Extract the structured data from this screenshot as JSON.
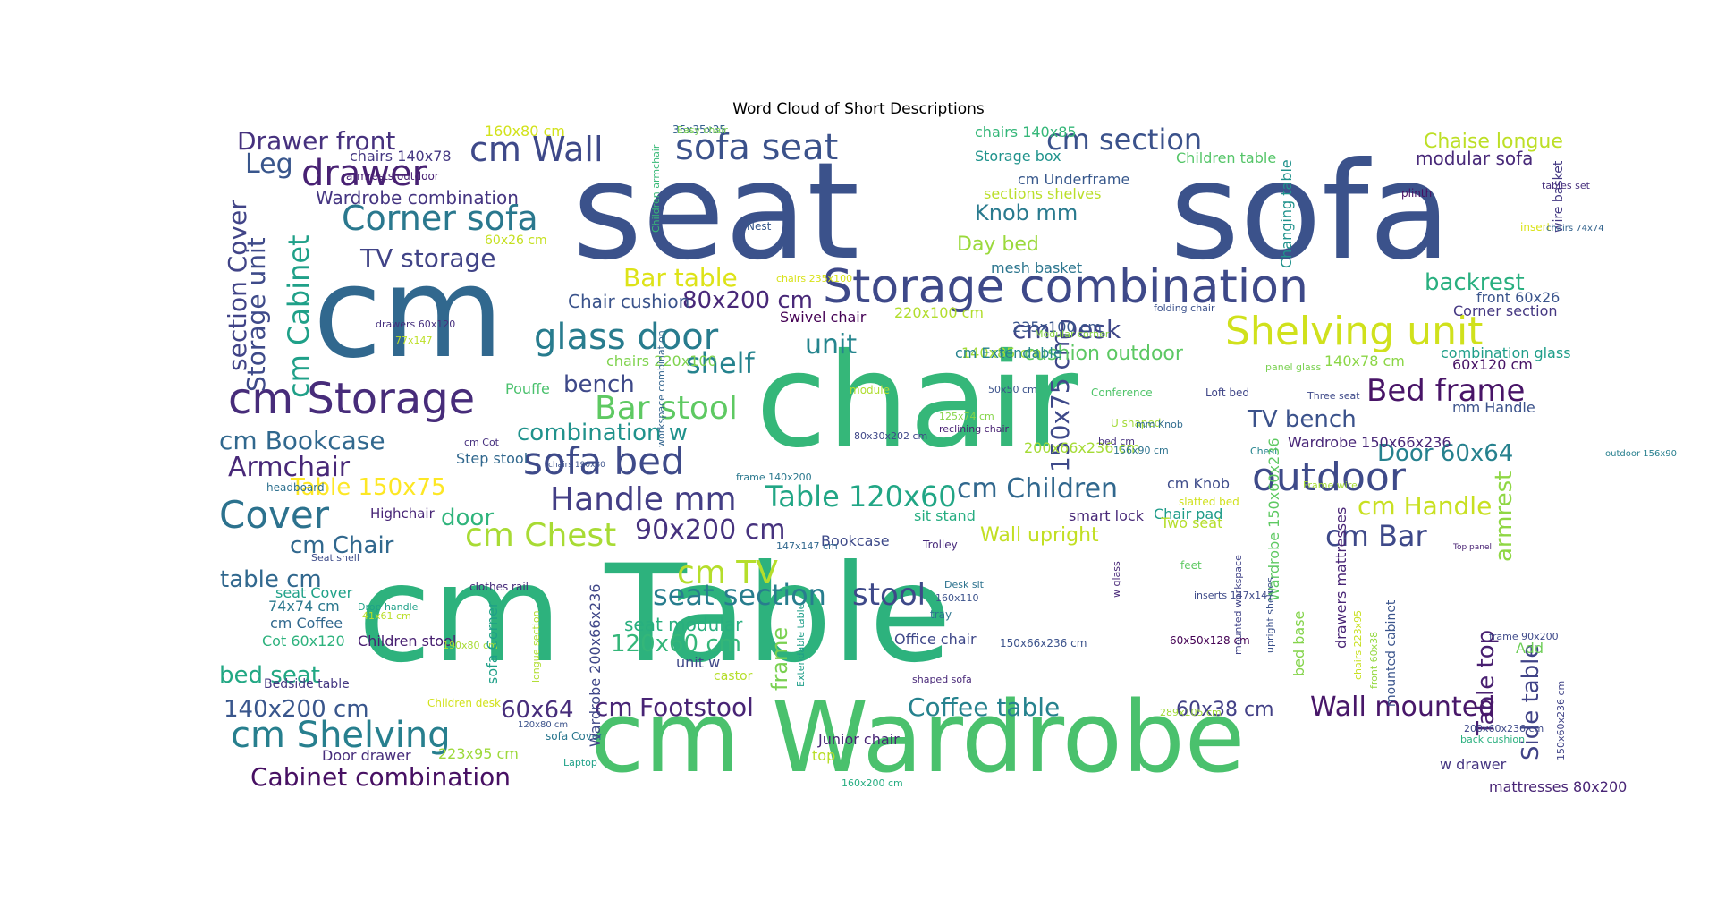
{
  "chart_data": {
    "type": "word_cloud",
    "title": "Word Cloud of Short Descriptions",
    "background": "#ffffff",
    "palette": "viridis",
    "words": [
      {
        "text": "seat",
        "weight": 100,
        "color": "#3b528b"
      },
      {
        "text": "sofa",
        "weight": 100,
        "color": "#3b528b"
      },
      {
        "text": "chair",
        "weight": 95,
        "color": "#35b779"
      },
      {
        "text": "cm",
        "weight": 94,
        "color": "#31688e"
      },
      {
        "text": "cm Table",
        "weight": 92,
        "color": "#2db27d"
      },
      {
        "text": "cm Wardrobe",
        "weight": 72,
        "color": "#4ac16d"
      },
      {
        "text": "Storage combination",
        "weight": 36,
        "color": "#3e4989"
      },
      {
        "text": "Shelving unit",
        "weight": 30,
        "color": "#d0e11c"
      },
      {
        "text": "cm Storage",
        "weight": 34,
        "color": "#472c7a"
      },
      {
        "text": "glass door",
        "weight": 30,
        "color": "#287c8e"
      },
      {
        "text": "outdoor",
        "weight": 30,
        "color": "#3e4a89"
      },
      {
        "text": "Corner sofa",
        "weight": 28,
        "color": "#2a788e"
      },
      {
        "text": "drawer",
        "weight": 30,
        "color": "#482173"
      },
      {
        "text": "sofa seat",
        "weight": 28,
        "color": "#3b528b"
      },
      {
        "text": "cm Wall",
        "weight": 28,
        "color": "#3e4989"
      },
      {
        "text": "cm section",
        "weight": 24,
        "color": "#3b528b"
      },
      {
        "text": "sofa bed",
        "weight": 28,
        "color": "#3e4a89"
      },
      {
        "text": "Bar stool",
        "weight": 26,
        "color": "#5ec962"
      },
      {
        "text": "Handle mm",
        "weight": 26,
        "color": "#433e85"
      },
      {
        "text": "Cover",
        "weight": 28,
        "color": "#2c728e"
      },
      {
        "text": "cm Shelving",
        "weight": 28,
        "color": "#277f8e"
      },
      {
        "text": "Bed frame",
        "weight": 24,
        "color": "#481467"
      },
      {
        "text": "Table 120x60",
        "weight": 24,
        "color": "#21a685"
      },
      {
        "text": "cm Children",
        "weight": 22,
        "color": "#31688e"
      },
      {
        "text": "cm Chest",
        "weight": 26,
        "color": "#a8db34"
      },
      {
        "text": "90x200 cm",
        "weight": 22,
        "color": "#46327e"
      },
      {
        "text": "cm TV",
        "weight": 26,
        "color": "#b5de2b"
      },
      {
        "text": "seat section",
        "weight": 22,
        "color": "#287d8e"
      },
      {
        "text": "stool",
        "weight": 22,
        "color": "#3e4989"
      },
      {
        "text": "150x75 cm",
        "weight": 22,
        "color": "#3e4989"
      },
      {
        "text": "cm Bar",
        "weight": 24,
        "color": "#3e4989"
      },
      {
        "text": "armrest",
        "weight": 20,
        "color": "#8fd744"
      },
      {
        "text": "Side table",
        "weight": 20,
        "color": "#404387"
      },
      {
        "text": "Table top",
        "weight": 20,
        "color": "#481f70"
      },
      {
        "text": "cm Handle",
        "weight": 20,
        "color": "#c8e020"
      },
      {
        "text": "Wall mounted",
        "weight": 20,
        "color": "#481769"
      },
      {
        "text": "Coffee table",
        "weight": 20,
        "color": "#26828e"
      },
      {
        "text": "Footstool",
        "weight": 20,
        "color": "#482475"
      },
      {
        "text": "Cabinet combination",
        "weight": 20,
        "color": "#471063"
      },
      {
        "text": "cm Cabinet",
        "weight": 22,
        "color": "#1fa088"
      },
      {
        "text": "Storage unit",
        "weight": 18,
        "color": "#3e4a89"
      },
      {
        "text": "section Cover",
        "weight": 18,
        "color": "#414487"
      },
      {
        "text": "Drawer front",
        "weight": 18,
        "color": "#46317e"
      },
      {
        "text": "Leg",
        "weight": 20,
        "color": "#39568c"
      },
      {
        "text": "TV storage",
        "weight": 18,
        "color": "#414487"
      },
      {
        "text": "Wardrobe combination",
        "weight": 14,
        "color": "#453581"
      },
      {
        "text": "Bar table",
        "weight": 18,
        "color": "#dde318"
      },
      {
        "text": "80x200 cm",
        "weight": 18,
        "color": "#482878"
      },
      {
        "text": "Knob mm",
        "weight": 18,
        "color": "#297a8e"
      },
      {
        "text": "Day bed",
        "weight": 16,
        "color": "#9bd93c"
      },
      {
        "text": "cm Desk",
        "weight": 20,
        "color": "#3f4788"
      },
      {
        "text": "unit",
        "weight": 20,
        "color": "#25858e"
      },
      {
        "text": "shelf",
        "weight": 22,
        "color": "#25838e"
      },
      {
        "text": "bench",
        "weight": 18,
        "color": "#3e4989"
      },
      {
        "text": "cushion outdoor",
        "weight": 16,
        "color": "#5cc863"
      },
      {
        "text": "backrest",
        "weight": 18,
        "color": "#29af7f"
      },
      {
        "text": "cm Bookcase",
        "weight": 18,
        "color": "#31688e"
      },
      {
        "text": "Armchair",
        "weight": 20,
        "color": "#482878"
      },
      {
        "text": "combination w",
        "weight": 18,
        "color": "#20928c"
      },
      {
        "text": "Table 150x75",
        "weight": 18,
        "color": "#fde725"
      },
      {
        "text": "door",
        "weight": 18,
        "color": "#2fb47c"
      },
      {
        "text": "cm Chair",
        "weight": 18,
        "color": "#31688e"
      },
      {
        "text": "table cm",
        "weight": 18,
        "color": "#31688e"
      },
      {
        "text": "TV bench",
        "weight": 18,
        "color": "#3b528b"
      },
      {
        "text": "Door 60x64",
        "weight": 18,
        "color": "#26818e"
      },
      {
        "text": "60x64",
        "weight": 18,
        "color": "#472d7b"
      },
      {
        "text": "cm",
        "weight": 18,
        "color": "#482576"
      },
      {
        "text": "120x60 cm",
        "weight": 18,
        "color": "#34b679"
      },
      {
        "text": "140x200 cm",
        "weight": 18,
        "color": "#39568c"
      },
      {
        "text": "bed seat",
        "weight": 18,
        "color": "#22a884"
      },
      {
        "text": "60x38 cm",
        "weight": 14,
        "color": "#424086"
      },
      {
        "text": "frame",
        "weight": 16,
        "color": "#7ad151"
      },
      {
        "text": "seat modular",
        "weight": 14,
        "color": "#29af7f"
      },
      {
        "text": "Chair cushion",
        "weight": 14,
        "color": "#3a538b"
      },
      {
        "text": "Chaise longue",
        "weight": 16,
        "color": "#bddf26"
      },
      {
        "text": "modular sofa",
        "weight": 14,
        "color": "#482979"
      },
      {
        "text": "Wall upright",
        "weight": 16,
        "color": "#c2df23"
      },
      {
        "text": "Chair pad",
        "weight": 12,
        "color": "#1e9c89"
      },
      {
        "text": "cm Knob",
        "weight": 12,
        "color": "#3e4c8a"
      },
      {
        "text": "chairs 140x85",
        "weight": 12,
        "color": "#35b779"
      },
      {
        "text": "Storage box",
        "weight": 12,
        "color": "#20938c"
      },
      {
        "text": "cm Underframe",
        "weight": 12,
        "color": "#38588c"
      },
      {
        "text": "sections shelves",
        "weight": 12,
        "color": "#bade28"
      },
      {
        "text": "Children table",
        "weight": 12,
        "color": "#54c568"
      },
      {
        "text": "mesh basket",
        "weight": 12,
        "color": "#2b758e"
      },
      {
        "text": "chairs 140x78",
        "weight": 12,
        "color": "#453882"
      },
      {
        "text": "armrests outdoor",
        "weight": 10,
        "color": "#482173"
      },
      {
        "text": "160x80 cm",
        "weight": 12,
        "color": "#d2e21b"
      },
      {
        "text": "60x26 cm",
        "weight": 11,
        "color": "#c5e021"
      },
      {
        "text": "Changing table",
        "weight": 12,
        "color": "#20928c"
      },
      {
        "text": "Children armchair",
        "weight": 9,
        "color": "#38b977"
      },
      {
        "text": "wire basket",
        "weight": 10,
        "color": "#443983"
      },
      {
        "text": "Swivel chair",
        "weight": 12,
        "color": "#440154"
      },
      {
        "text": "chairs 235x100",
        "weight": 9,
        "color": "#d8e219"
      },
      {
        "text": "220x100 cm",
        "weight": 12,
        "color": "#b2dd2d"
      },
      {
        "text": "235x100 cm",
        "weight": 12,
        "color": "#39558c"
      },
      {
        "text": "140x85 cm",
        "weight": 12,
        "color": "#a0da39"
      },
      {
        "text": "cm Extendable",
        "weight": 11,
        "color": "#26828e"
      },
      {
        "text": "front 60x26",
        "weight": 12,
        "color": "#3a548c"
      },
      {
        "text": "Corner section",
        "weight": 12,
        "color": "#453882"
      },
      {
        "text": "combination glass",
        "weight": 11,
        "color": "#1f9e89"
      },
      {
        "text": "60x120 cm",
        "weight": 12,
        "color": "#471365"
      },
      {
        "text": "140x78 cm",
        "weight": 12,
        "color": "#8bd646"
      },
      {
        "text": "mm Handle",
        "weight": 12,
        "color": "#3b528b"
      },
      {
        "text": "Wardrobe 150x66x236",
        "weight": 12,
        "color": "#482677"
      },
      {
        "text": "200x66x236 cm",
        "weight": 12,
        "color": "#a5db36"
      },
      {
        "text": "sit stand",
        "weight": 12,
        "color": "#26ad81"
      },
      {
        "text": "smart lock",
        "weight": 12,
        "color": "#482878"
      },
      {
        "text": "chairs 220x100",
        "weight": 12,
        "color": "#7fd34e"
      },
      {
        "text": "Step stool",
        "weight": 9,
        "color": "#31688e"
      },
      {
        "text": "Pouffe",
        "weight": 9,
        "color": "#4ac16d"
      },
      {
        "text": "cm Cot",
        "weight": 11,
        "color": "#46307e"
      },
      {
        "text": "headboard",
        "weight": 12,
        "color": "#2d708e"
      },
      {
        "text": "Highchair",
        "weight": 10,
        "color": "#482677"
      },
      {
        "text": "seat Cover",
        "weight": 12,
        "color": "#1fa188"
      },
      {
        "text": "clothes rail",
        "weight": 12,
        "color": "#472c7a"
      },
      {
        "text": "74x74 cm",
        "weight": 12,
        "color": "#2a788e"
      },
      {
        "text": "cm Coffee",
        "weight": 12,
        "color": "#31688e"
      },
      {
        "text": "Cot 60x120",
        "weight": 12,
        "color": "#2db27d"
      },
      {
        "text": "Children stool",
        "weight": 10,
        "color": "#482071"
      },
      {
        "text": "Bedside table",
        "weight": 10,
        "color": "#453882"
      },
      {
        "text": "Children desk",
        "weight": 12,
        "color": "#d2e21b"
      },
      {
        "text": "sofa Cover",
        "weight": 12,
        "color": "#2a778e"
      },
      {
        "text": "Door drawer",
        "weight": 12,
        "color": "#472d7b"
      },
      {
        "text": "223x95 cm",
        "weight": 11,
        "color": "#9dd93b"
      },
      {
        "text": "unit w",
        "weight": 12,
        "color": "#3f4788"
      },
      {
        "text": "castor",
        "weight": 12,
        "color": "#b5de2b"
      },
      {
        "text": "Junior chair",
        "weight": 10,
        "color": "#482576"
      },
      {
        "text": "top",
        "weight": 12,
        "color": "#b8de29"
      },
      {
        "text": "tray",
        "weight": 11,
        "color": "#2b748e"
      },
      {
        "text": "Office chair",
        "weight": 12,
        "color": "#3f4889"
      },
      {
        "text": "150x66x236 cm",
        "weight": 12,
        "color": "#3b528b"
      },
      {
        "text": "w drawer",
        "weight": 12,
        "color": "#453581"
      },
      {
        "text": "mattresses 80x200",
        "weight": 10,
        "color": "#482475"
      },
      {
        "text": "Add",
        "weight": 12,
        "color": "#6ece58"
      },
      {
        "text": "Trolley",
        "weight": 10,
        "color": "#472a7a"
      },
      {
        "text": "Bookcase",
        "weight": 10,
        "color": "#3e4a89"
      },
      {
        "text": "feet",
        "weight": 10,
        "color": "#5ec962"
      },
      {
        "text": "U shaped",
        "weight": 10,
        "color": "#a2da37"
      },
      {
        "text": "Conference",
        "weight": 9,
        "color": "#50c46a"
      },
      {
        "text": "Loft bed",
        "weight": 10,
        "color": "#404688"
      },
      {
        "text": "folding chair",
        "weight": 10,
        "color": "#3b518b"
      },
      {
        "text": "Nest",
        "weight": 10,
        "color": "#38598c"
      },
      {
        "text": "plinth",
        "weight": 10,
        "color": "#471063"
      },
      {
        "text": "insert",
        "weight": 12,
        "color": "#dae319"
      },
      {
        "text": "module",
        "weight": 10,
        "color": "#b0dd2f"
      },
      {
        "text": "Two seat",
        "weight": 9,
        "color": "#b5de2b"
      },
      {
        "text": "slatted bed",
        "weight": 9,
        "color": "#d0e11c"
      },
      {
        "text": "Frame wire",
        "weight": 8,
        "color": "#a5db36"
      },
      {
        "text": "Three seat",
        "weight": 10,
        "color": "#3e4989"
      },
      {
        "text": "outdoor 156x90",
        "weight": 9,
        "color": "#277f8e"
      },
      {
        "text": "35x35x35",
        "weight": 9,
        "color": "#34618d"
      },
      {
        "text": "Easy chair",
        "weight": 8,
        "color": "#7ad151"
      },
      {
        "text": "tables set",
        "weight": 10,
        "color": "#472f7d"
      },
      {
        "text": "chairs 74x74",
        "weight": 9,
        "color": "#33638d"
      },
      {
        "text": "125x74 cm",
        "weight": 9,
        "color": "#86d549"
      },
      {
        "text": "reclining chair",
        "weight": 10,
        "color": "#482173"
      },
      {
        "text": "80x30x202 cm",
        "weight": 9,
        "color": "#3f4788"
      },
      {
        "text": "50x50 cm",
        "weight": 9,
        "color": "#3b528b"
      },
      {
        "text": "bed cm",
        "weight": 9,
        "color": "#46317e"
      },
      {
        "text": "156x90 cm",
        "weight": 9,
        "color": "#2c728e"
      },
      {
        "text": "Chest",
        "weight": 9,
        "color": "#25848e"
      },
      {
        "text": "mm Knob",
        "weight": 9,
        "color": "#2f6b8e"
      },
      {
        "text": "drawers 60x120",
        "weight": 9,
        "color": "#46307e"
      },
      {
        "text": "77x147",
        "weight": 9,
        "color": "#bddf26"
      },
      {
        "text": "Modular corner",
        "weight": 9,
        "color": "#8bd646"
      },
      {
        "text": "panel glass",
        "weight": 9,
        "color": "#7ad151"
      },
      {
        "text": "workspace combination",
        "weight": 7,
        "color": "#32648e"
      },
      {
        "text": "frame 140x200",
        "weight": 9,
        "color": "#2a788e"
      },
      {
        "text": "chairs 190x80",
        "weight": 9,
        "color": "#3b528b"
      },
      {
        "text": "147x147 cm",
        "weight": 9,
        "color": "#31688e"
      },
      {
        "text": "Seat shell",
        "weight": 9,
        "color": "#3e4c8a"
      },
      {
        "text": "Drop handle",
        "weight": 9,
        "color": "#1fa188"
      },
      {
        "text": "41x61 cm",
        "weight": 8,
        "color": "#bade28"
      },
      {
        "text": "190x80 cm",
        "weight": 9,
        "color": "#a8db34"
      },
      {
        "text": "120x80 cm",
        "weight": 9,
        "color": "#3b528b"
      },
      {
        "text": "Laptop",
        "weight": 9,
        "color": "#1fa188"
      },
      {
        "text": "160x200 cm",
        "weight": 9,
        "color": "#26ad81"
      },
      {
        "text": "289x105 cm",
        "weight": 9,
        "color": "#a0da39"
      },
      {
        "text": "shaped sofa",
        "weight": 9,
        "color": "#482878"
      },
      {
        "text": "Desk sit",
        "weight": 10,
        "color": "#2c728e"
      },
      {
        "text": "160x110",
        "weight": 9,
        "color": "#3b528b"
      },
      {
        "text": "60x50x128 cm",
        "weight": 9,
        "color": "#440154"
      },
      {
        "text": "inserts 147x147",
        "weight": 7,
        "color": "#3e4a89"
      },
      {
        "text": "frame 90x200",
        "weight": 9,
        "color": "#3e4989"
      },
      {
        "text": "Top panel",
        "weight": 9,
        "color": "#482173"
      },
      {
        "text": "200x60x236 cm",
        "weight": 8,
        "color": "#3e4989"
      },
      {
        "text": "back cushion",
        "weight": 12,
        "color": "#2ab07f"
      },
      {
        "text": "150x60x236 cm",
        "weight": 9,
        "color": "#414487"
      },
      {
        "text": "sofa Corner",
        "weight": 12,
        "color": "#1fa088"
      },
      {
        "text": "longue section",
        "weight": 9,
        "color": "#b0dd2f"
      },
      {
        "text": "Wardrobe 200x66x236",
        "weight": 9,
        "color": "#3f4788"
      },
      {
        "text": "Extendable table",
        "weight": 12,
        "color": "#1f9e89"
      },
      {
        "text": "w glass",
        "weight": 12,
        "color": "#482878"
      },
      {
        "text": "Wardrobe 150x60x236",
        "weight": 8,
        "color": "#5ec962"
      },
      {
        "text": "bed base",
        "weight": 9,
        "color": "#84d44b"
      },
      {
        "text": "upright shelves",
        "weight": 12,
        "color": "#3b518b"
      },
      {
        "text": "mounted workspace",
        "weight": 9,
        "color": "#404387"
      },
      {
        "text": "drawers mattresses",
        "weight": 9,
        "color": "#482475"
      },
      {
        "text": "chairs 223x95",
        "weight": 11,
        "color": "#c8e020"
      },
      {
        "text": "front 60x38",
        "weight": 11,
        "color": "#95d840"
      },
      {
        "text": "mounted cabinet",
        "weight": 12,
        "color": "#3a548c"
      }
    ]
  }
}
